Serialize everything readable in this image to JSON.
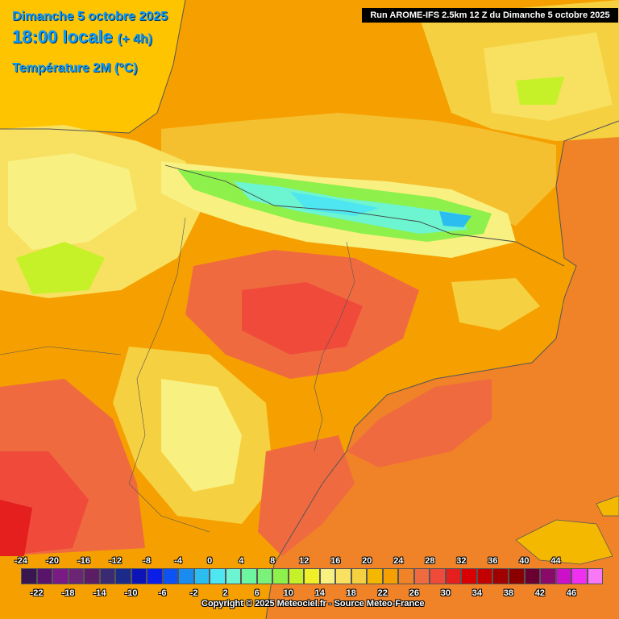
{
  "header": {
    "date_line": "Dimanche 5 octobre 2025",
    "time_line": "18:00 locale",
    "offset_label": "(+ 4h)",
    "parameter": "Température 2M (°C)",
    "run_info": "Run AROME-IFS 2.5km 12 Z du Dimanche 5 octobre 2025"
  },
  "legend": {
    "values": [
      -24,
      -22,
      -20,
      -18,
      -16,
      -14,
      -12,
      -10,
      -8,
      -6,
      -4,
      -2,
      0,
      2,
      4,
      6,
      8,
      10,
      12,
      14,
      16,
      18,
      20,
      22,
      24,
      26,
      28,
      30,
      32,
      34,
      36,
      38,
      40,
      42,
      44,
      46
    ],
    "colors": [
      "#3a1650",
      "#58136a",
      "#7a1b85",
      "#6b2574",
      "#5b1e64",
      "#3a2a72",
      "#1c2a8a",
      "#0c14b8",
      "#0a1ee8",
      "#0d52f2",
      "#1a8cf0",
      "#2bbcf0",
      "#4ee6f0",
      "#6cf5d0",
      "#6ef5a0",
      "#7af27a",
      "#8ef04a",
      "#c6f028",
      "#f0f028",
      "#f8f080",
      "#f8e060",
      "#f5d040",
      "#f5b800",
      "#f5a000",
      "#f08228",
      "#f06a40",
      "#f04a3a",
      "#e51e1e",
      "#d80000",
      "#c20000",
      "#a00000",
      "#8a0000",
      "#6a0030",
      "#8a0a6a",
      "#cc10c8",
      "#f030f0",
      "#f878f8"
    ],
    "copyright": "Copyright © 2025 Meteociel.fr - Source Meteo-France"
  }
}
